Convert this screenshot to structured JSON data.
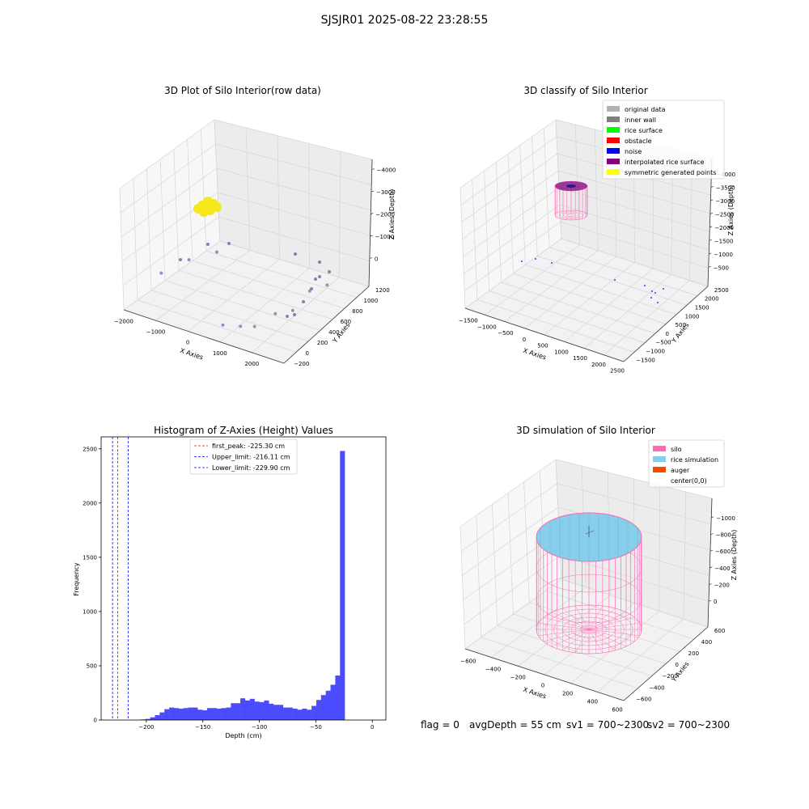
{
  "figure": {
    "suptitle": "SJSJR01 2025-08-22 23:28:55"
  },
  "footer": {
    "flag": "flag = 0",
    "avg_depth": "avgDepth = 55 cm",
    "sv1": "sv1 = 700~2300",
    "sv2": "sv2 = 700~2300"
  },
  "chart_data": [
    {
      "type": "scatter",
      "projection": "3d",
      "title": "3D Plot of Silo Interior(row data)",
      "xlabel": "X Axies",
      "ylabel": "Y Axies",
      "zlabel": "Z Axies (Depth)",
      "xticks": [
        "−2000",
        "−1000",
        "0",
        "1000",
        "2000"
      ],
      "yticks": [
        "−200",
        "0",
        "200",
        "400",
        "600",
        "800",
        "1000",
        "1200"
      ],
      "zticks": [
        "0",
        "−1000",
        "−2000",
        "−3000",
        "−4000"
      ],
      "xlim": [
        -2000,
        2500
      ],
      "ylim": [
        -200,
        1200
      ],
      "zlim": [
        -4500,
        0
      ],
      "series": [
        {
          "color": "#8b7bb5",
          "points": [
            [
              -1900,
              300,
              -4000
            ],
            [
              -1500,
              500,
              -3700
            ],
            [
              -1100,
              700,
              -3600
            ],
            [
              600,
              -100,
              -4100
            ],
            [
              900,
              0,
              -4200
            ],
            [
              1100,
              100,
              -4300
            ],
            [
              1300,
              300,
              -4100
            ],
            [
              1400,
              500,
              -4300
            ],
            [
              1500,
              700,
              -3900
            ],
            [
              1600,
              900,
              -4000
            ]
          ]
        },
        {
          "color": "#f5e71c",
          "points": [
            [
              -1300,
              800,
              -1600
            ],
            [
              -1250,
              850,
              -1650
            ],
            [
              -1200,
              780,
              -1700
            ],
            [
              -1150,
              820,
              -1580
            ]
          ]
        }
      ],
      "grid": true
    },
    {
      "type": "scatter",
      "projection": "3d",
      "title": "3D classify of Silo Interior",
      "xlabel": "X Axies",
      "ylabel": "Y Axies",
      "zlabel": "Z Axies (Depth)",
      "xticks": [
        "−1500",
        "−1000",
        "−500",
        "0",
        "500",
        "1000",
        "1500",
        "2000",
        "2500"
      ],
      "yticks": [
        "−1500",
        "−1000",
        "−500",
        "0",
        "500",
        "1000",
        "1500",
        "2000",
        "2500"
      ],
      "zticks": [
        "−500",
        "−1000",
        "−1500",
        "−2000",
        "−2500",
        "−3000",
        "−3500",
        "−4000"
      ],
      "legend": {
        "position": "upper-right",
        "entries": [
          {
            "label": "original data",
            "color": "#b3b3b3"
          },
          {
            "label": "inner wall",
            "color": "#808080"
          },
          {
            "label": "rice surface",
            "color": "#00ff00"
          },
          {
            "label": "obstacle",
            "color": "#ff0000"
          },
          {
            "label": "noise",
            "color": "#0000ff"
          },
          {
            "label": "interpolated rice surface",
            "color": "#800080"
          },
          {
            "label": "symmetric generated points",
            "color": "#ffff00"
          }
        ]
      },
      "grid": true
    },
    {
      "type": "histogram",
      "title": "Histogram of Z-Axies (Height) Values",
      "xlabel": "Depth (cm)",
      "ylabel": "Frequency",
      "xticks": [
        "−200",
        "−150",
        "−100",
        "−50",
        "0"
      ],
      "yticks": [
        "0",
        "500",
        "1000",
        "1500",
        "2000",
        "2500"
      ],
      "xlim": [
        -240,
        12
      ],
      "ylim": [
        0,
        2610
      ],
      "bar_color": "#4b4bff",
      "bins_start": -205,
      "bin_width": 4.2,
      "counts": [
        5,
        10,
        25,
        45,
        70,
        100,
        115,
        110,
        105,
        110,
        115,
        115,
        95,
        90,
        110,
        110,
        105,
        110,
        115,
        155,
        155,
        200,
        180,
        195,
        170,
        165,
        180,
        150,
        140,
        140,
        115,
        115,
        105,
        95,
        105,
        95,
        130,
        185,
        230,
        270,
        325,
        410,
        2480
      ],
      "vlines": [
        {
          "label": "first_peak: -225.30 cm",
          "x": -225.3,
          "color": "#ff0000"
        },
        {
          "label": "Upper_limit: -216.11 cm",
          "x": -216.11,
          "color": "#0000ff"
        },
        {
          "label": "Lower_limit: -229.90 cm",
          "x": -229.9,
          "color": "#0000ff"
        }
      ],
      "legend": {
        "position": "top-center"
      }
    },
    {
      "type": "wireframe",
      "projection": "3d",
      "title": "3D simulation of Silo Interior",
      "xlabel": "X Axies",
      "ylabel": "Y Axies",
      "zlabel": "Z Axies (Depth)",
      "xticks": [
        "−600",
        "−400",
        "−200",
        "0",
        "200",
        "400",
        "600"
      ],
      "yticks": [
        "−600",
        "−400",
        "−200",
        "0",
        "200",
        "400",
        "600"
      ],
      "zticks": [
        "0",
        "−200",
        "−400",
        "−600",
        "−800",
        "−1000"
      ],
      "legend": {
        "position": "upper-right",
        "entries": [
          {
            "label": "silo",
            "color": "#ff69b4"
          },
          {
            "label": "rice simulation",
            "color": "#87ceeb"
          },
          {
            "label": "auger",
            "color": "#ff4500"
          },
          {
            "label": "center(0,0)",
            "color": "#ffffff"
          }
        ]
      },
      "grid": true
    }
  ]
}
